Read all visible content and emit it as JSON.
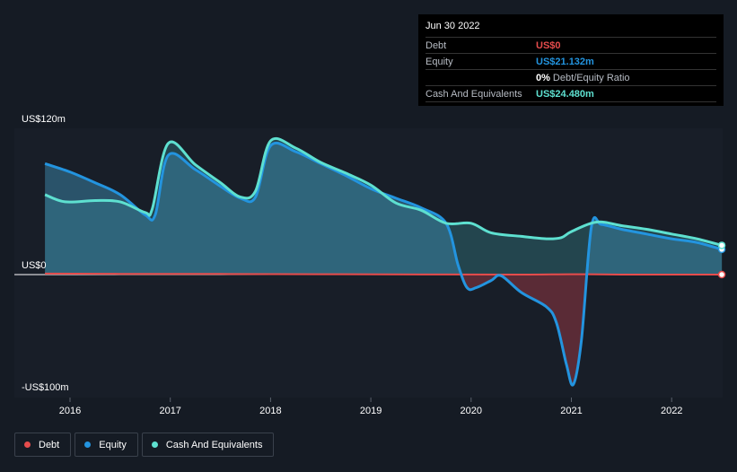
{
  "chart_data": {
    "type": "area",
    "y_labels": {
      "top": "US$120m",
      "zero": "US$0",
      "bottom": "-US$100m"
    },
    "ylim": [
      -100,
      120
    ],
    "xlim": [
      2015.5,
      2022.5
    ],
    "x_ticks": [
      {
        "value": 2016,
        "label": "2016"
      },
      {
        "value": 2017,
        "label": "2017"
      },
      {
        "value": 2018,
        "label": "2018"
      },
      {
        "value": 2019,
        "label": "2019"
      },
      {
        "value": 2020,
        "label": "2020"
      },
      {
        "value": 2021,
        "label": "2021"
      },
      {
        "value": 2022,
        "label": "2022"
      }
    ],
    "series": [
      {
        "name": "Debt",
        "color": "#e64c4c",
        "points": [
          [
            2015.75,
            0.8
          ],
          [
            2016.5,
            0.6
          ],
          [
            2017.5,
            0.5
          ],
          [
            2018.5,
            0.3
          ],
          [
            2019.5,
            0.1
          ],
          [
            2020.5,
            0.0
          ],
          [
            2021.0,
            0.3
          ],
          [
            2021.5,
            0.0
          ],
          [
            2022.5,
            0.0
          ]
        ]
      },
      {
        "name": "Equity",
        "color": "#2394df",
        "points": [
          [
            2015.75,
            93
          ],
          [
            2016.0,
            86
          ],
          [
            2016.25,
            77
          ],
          [
            2016.5,
            67
          ],
          [
            2016.75,
            50
          ],
          [
            2016.85,
            50
          ],
          [
            2016.98,
            100
          ],
          [
            2017.25,
            88
          ],
          [
            2017.5,
            74
          ],
          [
            2017.7,
            64
          ],
          [
            2017.85,
            65
          ],
          [
            2018.0,
            108
          ],
          [
            2018.25,
            103
          ],
          [
            2018.5,
            93
          ],
          [
            2018.75,
            83
          ],
          [
            2019.0,
            72
          ],
          [
            2019.25,
            64
          ],
          [
            2019.5,
            56
          ],
          [
            2019.75,
            43
          ],
          [
            2019.87,
            8
          ],
          [
            2019.96,
            -11
          ],
          [
            2020.05,
            -11
          ],
          [
            2020.2,
            -5
          ],
          [
            2020.3,
            -1
          ],
          [
            2020.5,
            -15
          ],
          [
            2020.75,
            -27
          ],
          [
            2020.85,
            -40
          ],
          [
            2020.95,
            -75
          ],
          [
            2021.02,
            -92
          ],
          [
            2021.1,
            -55
          ],
          [
            2021.2,
            40
          ],
          [
            2021.3,
            42
          ],
          [
            2021.5,
            38
          ],
          [
            2021.75,
            34
          ],
          [
            2022.0,
            30
          ],
          [
            2022.25,
            27
          ],
          [
            2022.5,
            21.132
          ]
        ]
      },
      {
        "name": "Cash And Equivalents",
        "color": "#5ee0d0",
        "points": [
          [
            2015.75,
            67
          ],
          [
            2015.95,
            61
          ],
          [
            2016.25,
            62
          ],
          [
            2016.5,
            61
          ],
          [
            2016.75,
            52
          ],
          [
            2016.82,
            55
          ],
          [
            2016.98,
            110
          ],
          [
            2017.25,
            92
          ],
          [
            2017.5,
            77
          ],
          [
            2017.7,
            65
          ],
          [
            2017.85,
            70
          ],
          [
            2018.0,
            112
          ],
          [
            2018.25,
            106
          ],
          [
            2018.5,
            94
          ],
          [
            2018.75,
            85
          ],
          [
            2019.0,
            75
          ],
          [
            2019.25,
            60
          ],
          [
            2019.5,
            54
          ],
          [
            2019.75,
            43
          ],
          [
            2020.0,
            43
          ],
          [
            2020.2,
            35
          ],
          [
            2020.5,
            32
          ],
          [
            2020.75,
            30
          ],
          [
            2020.9,
            31
          ],
          [
            2021.0,
            36
          ],
          [
            2021.25,
            44
          ],
          [
            2021.5,
            41
          ],
          [
            2021.75,
            38
          ],
          [
            2022.0,
            34
          ],
          [
            2022.25,
            30
          ],
          [
            2022.5,
            24.48
          ]
        ]
      }
    ],
    "grid": false,
    "legend_position": "bottom-left"
  },
  "tooltip": {
    "date": "Jun 30 2022",
    "debt_label": "Debt",
    "debt_value": "US$0",
    "equity_label": "Equity",
    "equity_value": "US$21.132m",
    "ratio_pct": "0%",
    "ratio_label": "Debt/Equity Ratio",
    "cash_label": "Cash And Equivalents",
    "cash_value": "US$24.480m",
    "colors": {
      "debt": "#e64c4c",
      "equity": "#2394df",
      "cash": "#5ee0d0"
    }
  },
  "legend": [
    {
      "label": "Debt",
      "color": "#e64c4c"
    },
    {
      "label": "Equity",
      "color": "#2394df"
    },
    {
      "label": "Cash And Equivalents",
      "color": "#5ee0d0"
    }
  ]
}
